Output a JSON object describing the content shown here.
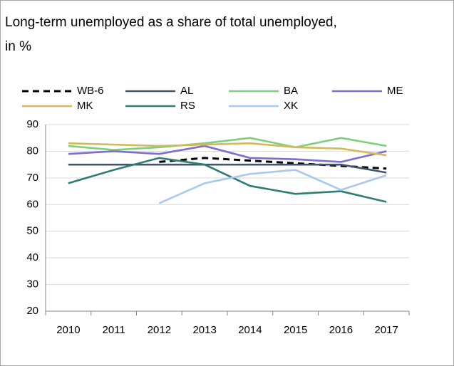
{
  "chart_data": {
    "type": "line",
    "title": "Long-term unemployed as a share of total unemployed,\nin %",
    "categories": [
      "2010",
      "2011",
      "2012",
      "2013",
      "2014",
      "2015",
      "2016",
      "2017"
    ],
    "series": [
      {
        "name": "WB-6",
        "color": "#000000",
        "dashed": true,
        "values": [
          null,
          null,
          76,
          77.5,
          76.5,
          75.5,
          74.5,
          73.5
        ]
      },
      {
        "name": "AL",
        "color": "#44546a",
        "values": [
          75,
          75,
          75,
          75,
          75,
          75,
          75,
          72
        ]
      },
      {
        "name": "BA",
        "color": "#7fd07a",
        "values": [
          82,
          80.5,
          81.5,
          83,
          85,
          81.5,
          85,
          82
        ]
      },
      {
        "name": "ME",
        "color": "#7b6fd0",
        "values": [
          79,
          80,
          79,
          82,
          77.5,
          77,
          76,
          80
        ]
      },
      {
        "name": "MK",
        "color": "#d4b85a",
        "values": [
          83,
          82.5,
          82,
          82.5,
          83,
          81.5,
          81,
          78.5
        ]
      },
      {
        "name": "RS",
        "color": "#2e7d73",
        "values": [
          68,
          73,
          77.5,
          75,
          67,
          64,
          65,
          61
        ]
      },
      {
        "name": "XK",
        "color": "#a8c8ec",
        "values": [
          null,
          null,
          60.5,
          68,
          71.5,
          73,
          65.5,
          71
        ]
      }
    ],
    "ylim": [
      20,
      90
    ],
    "yticks": [
      20,
      30,
      40,
      50,
      60,
      70,
      80,
      90
    ],
    "grid": true
  }
}
